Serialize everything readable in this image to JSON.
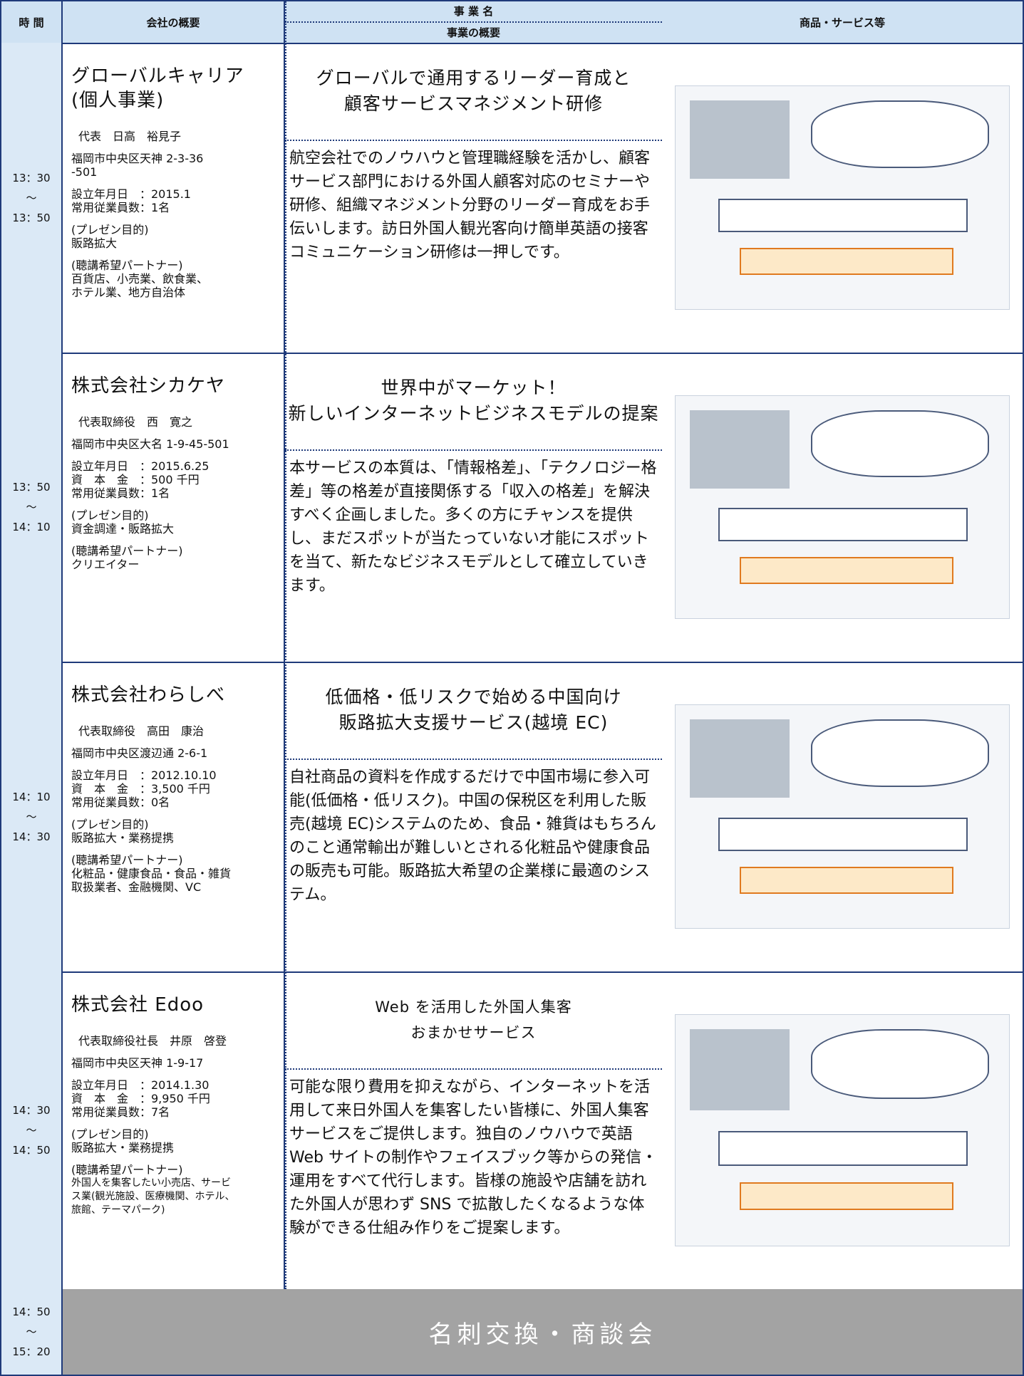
{
  "header": {
    "time": "時 間",
    "company": "会社の概要",
    "business_name": "事 業 名",
    "business_summary": "事業の概要",
    "products": "商品・サービス等"
  },
  "rows": [
    {
      "time": [
        "13：30",
        "～",
        "13：50"
      ],
      "company_name": [
        "グローバルキャリア",
        "(個人事業)"
      ],
      "details": [
        [
          "代表　日高　裕見子"
        ],
        [
          "福岡市中央区天神 2-3-36",
          "-501"
        ],
        [
          "設立年月日　：2015.1",
          "常用従業員数：1名"
        ],
        [
          "(プレゼン目的)",
          "販路拡大"
        ],
        [
          "(聴講希望パートナー)",
          "百貨店、小売業、飲食業、",
          "ホテル業、地方自治体"
        ]
      ],
      "title": [
        "グローバルで通用するリーダー育成と",
        "顧客サービスマネジメント研修"
      ],
      "description": "航空会社でのノウハウと管理職経験を活かし、顧客サービス部門における外国人顧客対応のセミナーや研修、組織マネジメント分野のリーダー育成をお手伝いします。訪日外国人観光客向け簡単英語の接客コミュニケーション研修は一押しです。"
    },
    {
      "time": [
        "13：50",
        "～",
        "14：10"
      ],
      "company_name": [
        "株式会社シカケヤ"
      ],
      "details": [
        [
          "代表取締役　西　寛之"
        ],
        [
          "福岡市中央区大名 1-9-45-501"
        ],
        [
          "設立年月日　：2015.6.25",
          "資　本　金　：500 千円",
          "常用従業員数：1名"
        ],
        [
          "(プレゼン目的)",
          "資金調達・販路拡大"
        ],
        [
          "(聴講希望パートナー)",
          "クリエイター"
        ]
      ],
      "title": [
        "世界中がマーケット！",
        "新しいインターネットビジネスモデルの提案"
      ],
      "description": "本サービスの本質は、「情報格差」、「テクノロジー格差」等の格差が直接関係する「収入の格差」を解決すべく企画しました。多くの方にチャンスを提供し、まだスポットが当たっていない才能にスポットを当て、新たなビジネスモデルとして確立していきます。"
    },
    {
      "time": [
        "14：10",
        "～",
        "14：30"
      ],
      "company_name": [
        "株式会社わらしべ"
      ],
      "details": [
        [
          "代表取締役　高田　康治"
        ],
        [
          "福岡市中央区渡辺通 2-6-1"
        ],
        [
          "設立年月日　：2012.10.10",
          "資　本　金　：3,500 千円",
          "常用従業員数：0名"
        ],
        [
          "(プレゼン目的)",
          "販路拡大・業務提携"
        ],
        [
          "(聴講希望パートナー)",
          "化粧品・健康食品・食品・雑貨",
          "取扱業者、金融機関、VC"
        ]
      ],
      "title": [
        "低価格・低リスクで始める中国向け",
        "販路拡大支援サービス(越境 EC)"
      ],
      "description": "自社商品の資料を作成するだけで中国市場に参入可能(低価格・低リスク)。中国の保税区を利用した販売(越境 EC)システムのため、食品・雑貨はもちろんのこと通常輸出が難しいとされる化粧品や健康食品の販売も可能。販路拡大希望の企業様に最適のシステム。"
    },
    {
      "time": [
        "14：30",
        "～",
        "14：50"
      ],
      "company_name": [
        "株式会社 Edoo"
      ],
      "details": [
        [
          "代表取締役社長　井原　啓登"
        ],
        [
          "福岡市中央区天神 1-9-17"
        ],
        [
          "設立年月日　：2014.1.30",
          "資　本　金　：9,950 千円",
          "常用従業員数：7名"
        ],
        [
          "(プレゼン目的)",
          "販路拡大・業務提携"
        ],
        [
          "(聴講希望パートナー)",
          "外国人を集客したい小売店、サービ",
          "ス業(観光施設、医療機関、ホテル、",
          "旅館、テーマパーク)"
        ]
      ],
      "title": [
        "Web を活用した外国人集客",
        "おまかせサービス"
      ],
      "description": "可能な限り費用を抑えながら、インターネットを活用して来日外国人を集客したい皆様に、外国人集客サービスをご提供します。独自のノウハウで英語 Web サイトの制作やフェイスブック等からの発信・運用をすべて代行します。皆様の施設や店舗を訪れた外国人が思わず SNS で拡散したくなるような体験ができる仕組み作りをご提案します。"
    }
  ],
  "closing": {
    "time": [
      "14：50",
      "～",
      "15：20"
    ],
    "label": "名刺交換・商談会"
  }
}
